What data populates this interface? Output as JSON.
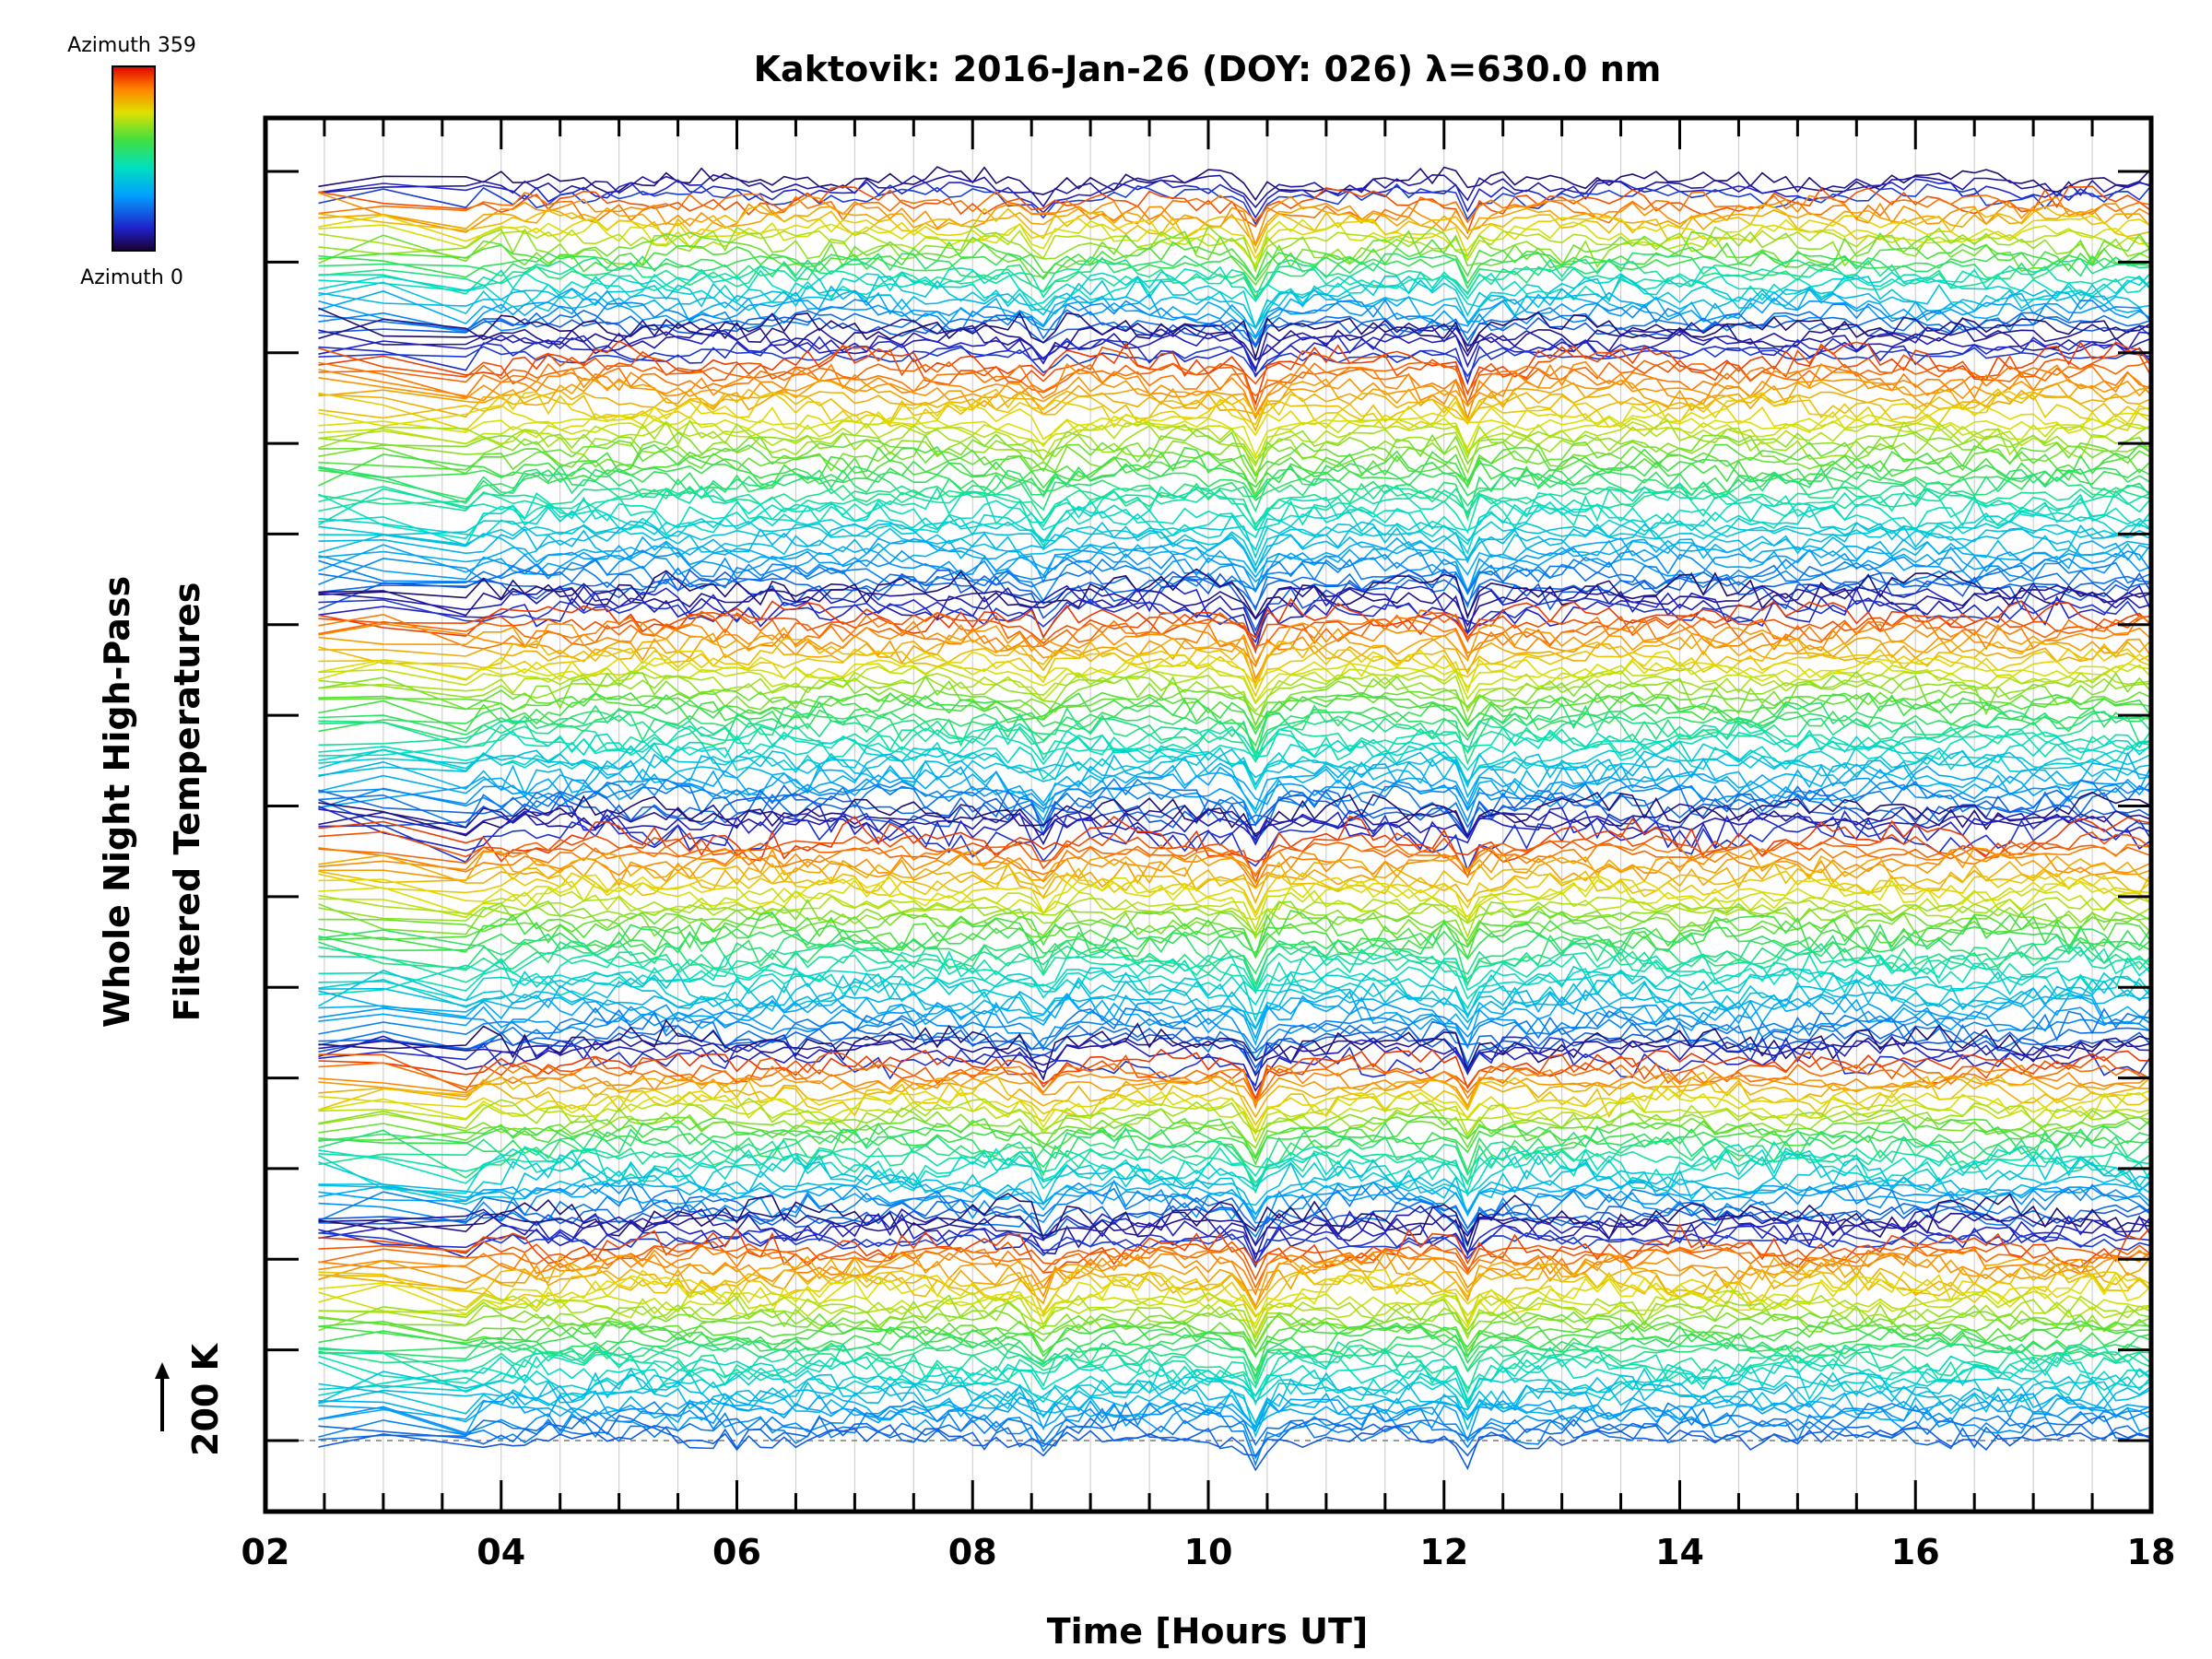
{
  "chart_data": {
    "type": "line",
    "title": "Kaktovik: 2016-Jan-26 (DOY: 026) λ=630.0 nm",
    "xlabel": "Time [Hours UT]",
    "ylabel_line1": "Whole Night High-Pass",
    "ylabel_line2": "Filtered Temperatures",
    "scale_bar_label": "200 K",
    "xlim": [
      2,
      18
    ],
    "x_tick_labels": [
      "02",
      "04",
      "06",
      "08",
      "10",
      "12",
      "14",
      "16",
      "18"
    ],
    "x_major_ticks": [
      2,
      4,
      6,
      8,
      10,
      12,
      14,
      16,
      18
    ],
    "x_minor_step": 0.5,
    "x_grid_step": 0.5,
    "grid": true,
    "data_x_range": [
      2.45,
      18.0
    ],
    "num_series": 240,
    "y_tick_count": 15,
    "colorbar": {
      "label_top": "Azimuth 359",
      "label_bottom": "Azimuth 0",
      "min": 0,
      "max": 359,
      "colormap": "rainbow",
      "placement": "top-left"
    },
    "notable_events_hours": [
      3.7,
      8.6,
      10.4,
      12.2
    ],
    "colors": {
      "axis": "#000000",
      "grid": "#c8c8c8",
      "baseline_dashed": "#999999"
    }
  }
}
